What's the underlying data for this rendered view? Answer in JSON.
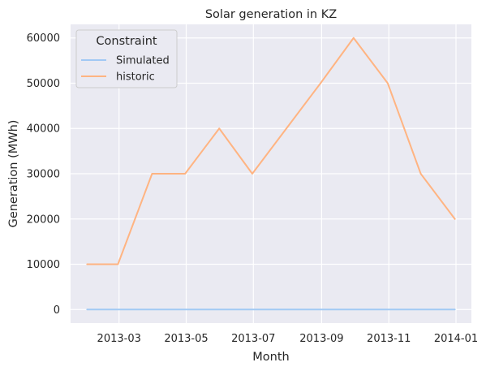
{
  "chart_data": {
    "type": "line",
    "title": "Solar generation in KZ",
    "xlabel": "Month",
    "ylabel": "Generation (MWh)",
    "x": [
      "2013-01-31",
      "2013-02-28",
      "2013-03-31",
      "2013-04-30",
      "2013-05-31",
      "2013-06-30",
      "2013-07-31",
      "2013-08-31",
      "2013-09-30",
      "2013-10-31",
      "2013-11-30",
      "2013-12-31"
    ],
    "xlim": [
      "2013-01-16",
      "2014-01-15"
    ],
    "ylim": [
      -3000,
      63000
    ],
    "x_ticks": [
      {
        "date": "2013-03-01",
        "label": "2013-03"
      },
      {
        "date": "2013-05-01",
        "label": "2013-05"
      },
      {
        "date": "2013-07-01",
        "label": "2013-07"
      },
      {
        "date": "2013-09-01",
        "label": "2013-09"
      },
      {
        "date": "2013-11-01",
        "label": "2013-11"
      },
      {
        "date": "2014-01-01",
        "label": "2014-01"
      }
    ],
    "y_ticks": [
      0,
      10000,
      20000,
      30000,
      40000,
      50000,
      60000
    ],
    "grid": true,
    "legend": {
      "title": "Constraint",
      "placement": "top-left"
    },
    "series": [
      {
        "name": "Simulated",
        "color": "#a1c9f4",
        "values": [
          0,
          0,
          0,
          0,
          0,
          0,
          0,
          0,
          0,
          0,
          0,
          0
        ]
      },
      {
        "name": "historic",
        "color": "#ffb482",
        "values": [
          10000,
          10000,
          30000,
          30000,
          40000,
          30000,
          40000,
          50000,
          60000,
          50000,
          30000,
          20000
        ]
      }
    ]
  }
}
